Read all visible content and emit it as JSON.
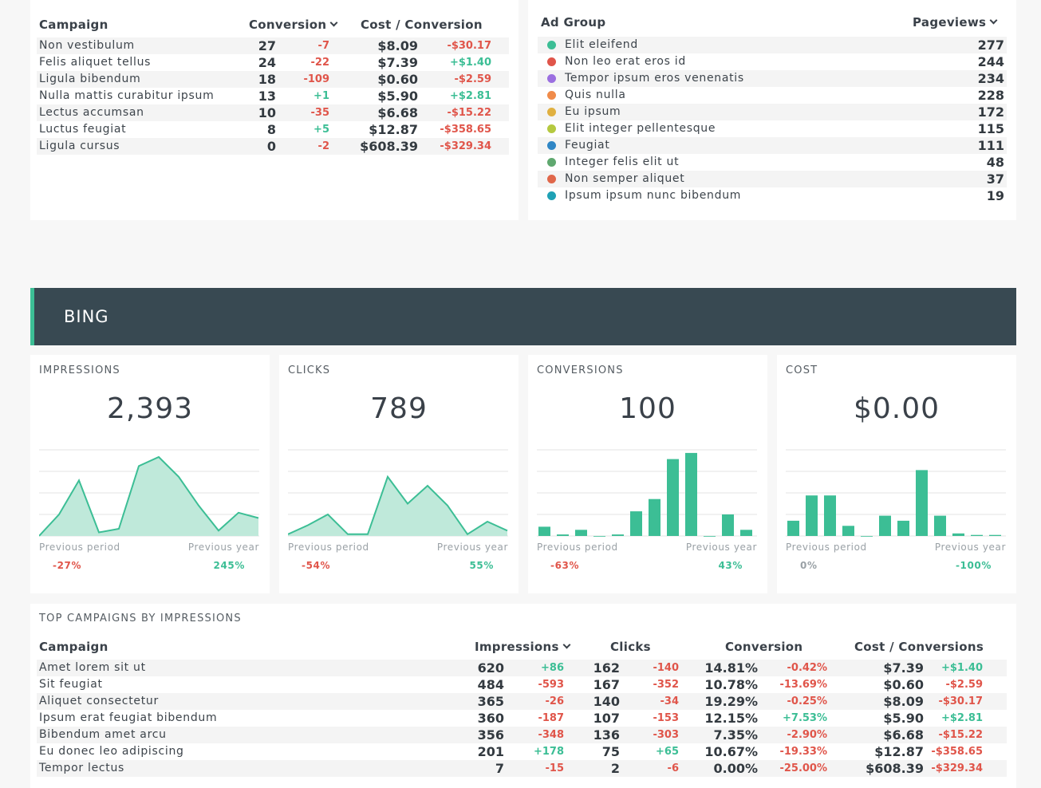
{
  "campaigns_table": {
    "headers": {
      "campaign": "Campaign",
      "conversion": "Conversion",
      "cost_conversion": "Cost / Conversion"
    },
    "rows": [
      {
        "name": "Non vestibulum",
        "conversion": "27",
        "conversion_delta": "-7",
        "cost": "$8.09",
        "cost_delta": "-$30.17"
      },
      {
        "name": "Felis aliquet tellus",
        "conversion": "24",
        "conversion_delta": "-22",
        "cost": "$7.39",
        "cost_delta": "+$1.40"
      },
      {
        "name": "Ligula bibendum",
        "conversion": "18",
        "conversion_delta": "-109",
        "cost": "$0.60",
        "cost_delta": "-$2.59"
      },
      {
        "name": "Nulla mattis curabitur ipsum",
        "conversion": "13",
        "conversion_delta": "+1",
        "cost": "$5.90",
        "cost_delta": "+$2.81"
      },
      {
        "name": "Lectus accumsan",
        "conversion": "10",
        "conversion_delta": "-35",
        "cost": "$6.68",
        "cost_delta": "-$15.22"
      },
      {
        "name": "Luctus feugiat",
        "conversion": "8",
        "conversion_delta": "+5",
        "cost": "$12.87",
        "cost_delta": "-$358.65"
      },
      {
        "name": "Ligula cursus",
        "conversion": "0",
        "conversion_delta": "-2",
        "cost": "$608.39",
        "cost_delta": "-$329.34"
      }
    ]
  },
  "adgroup_table": {
    "headers": {
      "ad_group": "Ad Group",
      "pageviews": "Pageviews"
    },
    "rows": [
      {
        "name": "Elit eleifend",
        "value": "277",
        "color": "#3cbe95"
      },
      {
        "name": "Non leo erat eros id",
        "value": "244",
        "color": "#e0554a"
      },
      {
        "name": "Tempor ipsum eros venenatis",
        "value": "234",
        "color": "#9b6fe0"
      },
      {
        "name": "Quis nulla",
        "value": "228",
        "color": "#f08b4a"
      },
      {
        "name": "Eu ipsum",
        "value": "172",
        "color": "#e0b040"
      },
      {
        "name": "Elit integer pellentesque",
        "value": "115",
        "color": "#b5c940"
      },
      {
        "name": "Feugiat",
        "value": "111",
        "color": "#2f86c5"
      },
      {
        "name": "Integer felis elit ut",
        "value": "48",
        "color": "#5fa86f"
      },
      {
        "name": "Non semper aliquet",
        "value": "37",
        "color": "#e0674a"
      },
      {
        "name": "Ipsum ipsum nunc bibendum",
        "value": "19",
        "color": "#1fa1b5"
      }
    ]
  },
  "section": {
    "title": "BING",
    "accent": "#3cbe95",
    "banner_bg": "#384952"
  },
  "metrics": [
    {
      "label": "IMPRESSIONS",
      "value": "2,393",
      "prev_period_label": "Previous period",
      "prev_period": "-27%",
      "prev_period_class": "neg",
      "prev_year_label": "Previous year",
      "prev_year": "245%",
      "prev_year_class": "pos"
    },
    {
      "label": "CLICKS",
      "value": "789",
      "prev_period_label": "Previous period",
      "prev_period": "-54%",
      "prev_period_class": "neg",
      "prev_year_label": "Previous year",
      "prev_year": "55%",
      "prev_year_class": "pos"
    },
    {
      "label": "CONVERSIONS",
      "value": "100",
      "prev_period_label": "Previous period",
      "prev_period": "-63%",
      "prev_period_class": "neg",
      "prev_year_label": "Previous year",
      "prev_year": "43%",
      "prev_year_class": "pos"
    },
    {
      "label": "COST",
      "value": "$0.00",
      "prev_period_label": "Previous period",
      "prev_period": "0%",
      "prev_period_class": "zero",
      "prev_year_label": "Previous year",
      "prev_year": "-100%",
      "prev_year_class": "pos"
    }
  ],
  "chart_data": [
    {
      "type": "area",
      "values": [
        0,
        12,
        31,
        2,
        4,
        39,
        44,
        33,
        17,
        3,
        13,
        10
      ],
      "ylim": [
        0,
        48
      ]
    },
    {
      "type": "area",
      "values": [
        1,
        6,
        12,
        1,
        1,
        33,
        18,
        28,
        17,
        1,
        8,
        3
      ],
      "ylim": [
        0,
        48
      ]
    },
    {
      "type": "bar",
      "values": [
        3,
        0.5,
        2,
        0,
        0.5,
        8,
        12,
        25,
        27,
        0,
        7,
        2
      ],
      "ylim": [
        0,
        28
      ]
    },
    {
      "type": "bar",
      "values": [
        3,
        8,
        8,
        2,
        0,
        4,
        3,
        13,
        4,
        0.5,
        0.2,
        0.2
      ],
      "ylim": [
        0,
        17
      ]
    }
  ],
  "top_campaigns": {
    "title": "TOP CAMPAIGNS BY IMPRESSIONS",
    "headers": {
      "campaign": "Campaign",
      "impressions": "Impressions",
      "clicks": "Clicks",
      "conversion": "Conversion",
      "cost_conversions": "Cost / Conversions"
    },
    "rows": [
      {
        "name": "Amet lorem sit ut",
        "impressions": "620",
        "impressions_delta": "+86",
        "clicks": "162",
        "clicks_delta": "-140",
        "conversion": "14.81%",
        "conversion_delta": "-0.42%",
        "cost": "$7.39",
        "cost_delta": "+$1.40"
      },
      {
        "name": "Sit feugiat",
        "impressions": "484",
        "impressions_delta": "-593",
        "clicks": "167",
        "clicks_delta": "-352",
        "conversion": "10.78%",
        "conversion_delta": "-13.69%",
        "cost": "$0.60",
        "cost_delta": "-$2.59"
      },
      {
        "name": "Aliquet consectetur",
        "impressions": "365",
        "impressions_delta": "-26",
        "clicks": "140",
        "clicks_delta": "-34",
        "conversion": "19.29%",
        "conversion_delta": "-0.25%",
        "cost": "$8.09",
        "cost_delta": "-$30.17"
      },
      {
        "name": "Ipsum erat feugiat bibendum",
        "impressions": "360",
        "impressions_delta": "-187",
        "clicks": "107",
        "clicks_delta": "-153",
        "conversion": "12.15%",
        "conversion_delta": "+7.53%",
        "cost": "$5.90",
        "cost_delta": "+$2.81"
      },
      {
        "name": "Bibendum amet arcu",
        "impressions": "356",
        "impressions_delta": "-348",
        "clicks": "136",
        "clicks_delta": "-303",
        "conversion": "7.35%",
        "conversion_delta": "-2.90%",
        "cost": "$6.68",
        "cost_delta": "-$15.22"
      },
      {
        "name": "Eu donec leo adipiscing",
        "impressions": "201",
        "impressions_delta": "+178",
        "clicks": "75",
        "clicks_delta": "+65",
        "conversion": "10.67%",
        "conversion_delta": "-19.33%",
        "cost": "$12.87",
        "cost_delta": "-$358.65"
      },
      {
        "name": "Tempor lectus",
        "impressions": "7",
        "impressions_delta": "-15",
        "clicks": "2",
        "clicks_delta": "-6",
        "conversion": "0.00%",
        "conversion_delta": "-25.00%",
        "cost": "$608.39",
        "cost_delta": "-$329.34"
      }
    ]
  }
}
